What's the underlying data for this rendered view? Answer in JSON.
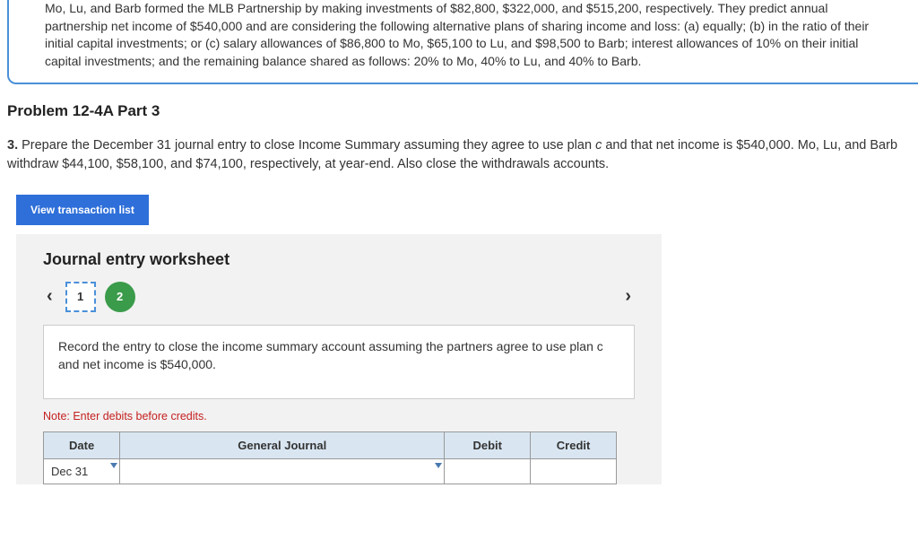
{
  "problem": {
    "text": "Mo, Lu, and Barb formed the MLB Partnership by making investments of $82,800, $322,000, and $515,200, respectively. They predict annual partnership net income of $540,000 and are considering the following alternative plans of sharing income and loss: (a) equally; (b) in the ratio of their initial capital investments; or (c) salary allowances of $86,800 to Mo, $65,100 to Lu, and $98,500 to Barb; interest allowances of 10% on their initial capital investments; and the remaining balance shared as follows: 20% to Mo, 40% to Lu, and 40% to Barb."
  },
  "section_title": "Problem 12-4A Part 3",
  "instruction": {
    "num": "3.",
    "before_ital": " Prepare the December 31 journal entry to close Income Summary assuming they agree to use plan ",
    "ital": "c",
    "after_ital": " and that net income is $540,000. Mo, Lu, and Barb withdraw $44,100, $58,100, and $74,100, respectively, at year-end. Also close the withdrawals accounts."
  },
  "buttons": {
    "view": "View transaction list"
  },
  "worksheet": {
    "title": "Journal entry worksheet",
    "steps": [
      "1",
      "2"
    ],
    "active_step": 0,
    "instruction": "Record the entry to close the income summary account assuming the partners agree to use plan c and net income is $540,000.",
    "note": "Note: Enter debits before credits.",
    "headers": {
      "date": "Date",
      "gj": "General Journal",
      "debit": "Debit",
      "credit": "Credit"
    },
    "rows": [
      {
        "date": "Dec 31"
      }
    ]
  },
  "colors": {
    "accent": "#4a90d9",
    "button": "#2e6fd9",
    "done": "#3a9b4a",
    "header_bg": "#d9e6f2",
    "note": "#c52020"
  }
}
